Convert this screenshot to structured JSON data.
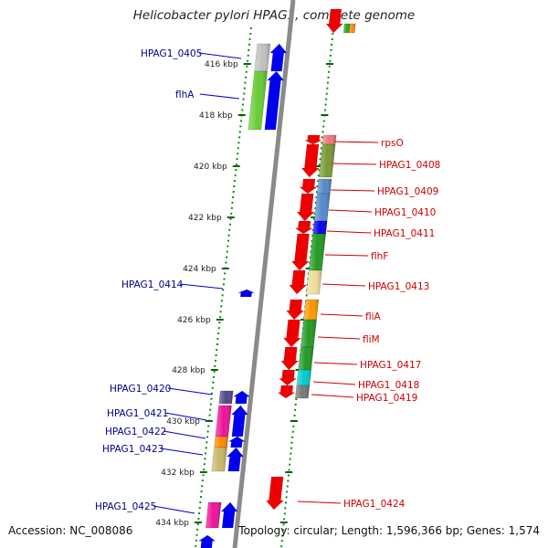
{
  "title": "Helicobacter pylori HPAG1, complete genome",
  "footer": {
    "accession": "Accession: NC_008086",
    "summary": "Topology: circular; Length: 1,596,366 bp; Genes: 1,574"
  },
  "colors": {
    "forward_label": "#00008b",
    "reverse_label": "#cc0000",
    "forward_gene": "#0000ee",
    "reverse_gene": "#ee0000",
    "tick": "#006600",
    "backbone": "#888888"
  },
  "kbp_ticks": [
    {
      "label": "416 kbp",
      "kbp": 416
    },
    {
      "label": "418 kbp",
      "kbp": 418
    },
    {
      "label": "420 kbp",
      "kbp": 420
    },
    {
      "label": "422 kbp",
      "kbp": 422
    },
    {
      "label": "424 kbp",
      "kbp": 424
    },
    {
      "label": "426 kbp",
      "kbp": 426
    },
    {
      "label": "428 kbp",
      "kbp": 428
    },
    {
      "label": "430 kbp",
      "kbp": 430
    },
    {
      "label": "432 kbp",
      "kbp": 432
    },
    {
      "label": "434 kbp",
      "kbp": 434
    }
  ],
  "forward_genes": [
    {
      "label": "HPAG1_0405",
      "class_color": "#c0c0c0"
    },
    {
      "label": "flhA",
      "class_color": "#66cc33"
    },
    {
      "label": "HPAG1_0414",
      "class_color": ""
    },
    {
      "label": "HPAG1_0420",
      "class_color": "#554488"
    },
    {
      "label": "HPAG1_0421",
      "class_color": "#ee1199"
    },
    {
      "label": "HPAG1_0422",
      "class_color": "#ff8800"
    },
    {
      "label": "HPAG1_0423",
      "class_color": "#c8b86a"
    },
    {
      "label": "HPAG1_0425",
      "class_color": "#ee1199"
    }
  ],
  "reverse_genes": [
    {
      "label": "rpsO",
      "class_color": "#ee7777"
    },
    {
      "label": "HPAG1_0408",
      "class_color": "#779933"
    },
    {
      "label": "HPAG1_0409",
      "class_color": "#5588cc"
    },
    {
      "label": "HPAG1_0410",
      "class_color": "#5588cc"
    },
    {
      "label": "HPAG1_0411",
      "class_color": "#0000ee"
    },
    {
      "label": "flhF",
      "class_color": "#229922"
    },
    {
      "label": "HPAG1_0413",
      "class_color": "#eedd99"
    },
    {
      "label": "fliA",
      "class_color": "#ff9900"
    },
    {
      "label": "fliM",
      "class_color": "#229922"
    },
    {
      "label": "HPAG1_0417",
      "class_color": "#229922"
    },
    {
      "label": "HPAG1_0418",
      "class_color": "#00cccc"
    },
    {
      "label": "HPAG1_0419",
      "class_color": "#777777"
    },
    {
      "label": "HPAG1_0424",
      "class_color": ""
    }
  ]
}
